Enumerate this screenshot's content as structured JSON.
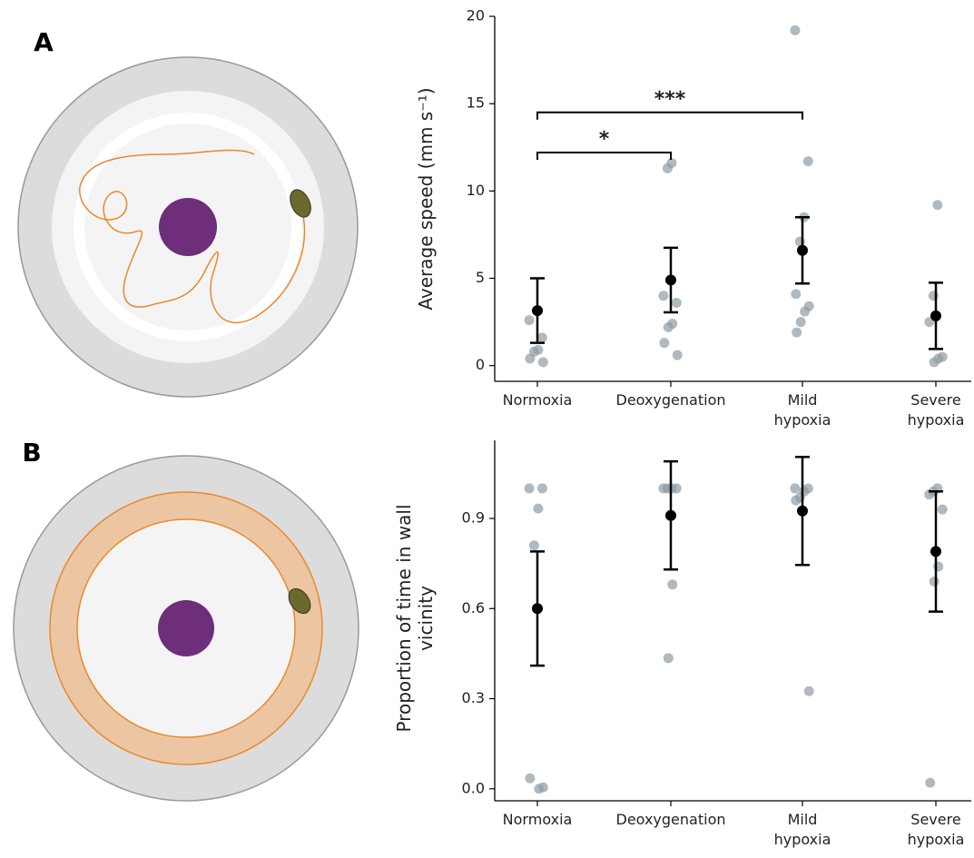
{
  "chart_data": [
    {
      "type": "dotplot",
      "panel_label": "A",
      "y_label": "Average speed (mm s⁻¹)",
      "categories": [
        "Normoxia",
        "Deoxygenation",
        "Mild\nhypoxia",
        "Severe\nhypoxia"
      ],
      "points": [
        [
          2.6,
          1.6,
          0.9,
          0.8,
          0.4,
          0.2
        ],
        [
          11.6,
          11.3,
          4.0,
          3.6,
          2.4,
          2.2,
          1.3,
          0.6
        ],
        [
          19.2,
          11.7,
          8.5,
          7.1,
          4.1,
          3.4,
          3.1,
          2.5,
          1.9
        ],
        [
          9.2,
          4.0,
          2.5,
          0.5,
          0.4,
          0.2
        ]
      ],
      "means": [
        3.15,
        4.9,
        6.6,
        2.85
      ],
      "errors": [
        1.85,
        1.85,
        1.9,
        1.9
      ],
      "point_color": "#8e9ba5",
      "mean_color": "#000000",
      "ylim": [
        -0.9,
        20
      ],
      "yticks": [
        0,
        5,
        10,
        15,
        20
      ],
      "annotations": [
        {
          "from": 0,
          "to": 1,
          "y": 12.2,
          "label": "*"
        },
        {
          "from": 0,
          "to": 2,
          "y": 14.5,
          "label": "***"
        }
      ]
    },
    {
      "type": "dotplot",
      "panel_label": "B",
      "y_label": "Proportion of time in wall\nvicinity",
      "categories": [
        "Normoxia",
        "Deoxygenation",
        "Mild\nhypoxia",
        "Severe\nhypoxia"
      ],
      "points": [
        [
          1.0,
          1.0,
          0.933,
          0.81,
          0.035,
          0.005,
          0.0
        ],
        [
          1.0,
          1.0,
          1.0,
          1.0,
          0.68,
          0.435
        ],
        [
          1.0,
          1.0,
          0.99,
          0.97,
          0.96,
          0.325
        ],
        [
          1.0,
          0.99,
          0.98,
          0.93,
          0.74,
          0.69,
          0.02
        ]
      ],
      "means": [
        0.6,
        0.91,
        0.925,
        0.79
      ],
      "errors": [
        0.19,
        0.18,
        0.18,
        0.2
      ],
      "point_color": "#8e9ba5",
      "mean_color": "#000000",
      "ylim": [
        -0.04,
        1.16
      ],
      "yticks": [
        {
          "value": 0,
          "label": "0.0"
        },
        0.3,
        0.6,
        0.9
      ]
    }
  ]
}
